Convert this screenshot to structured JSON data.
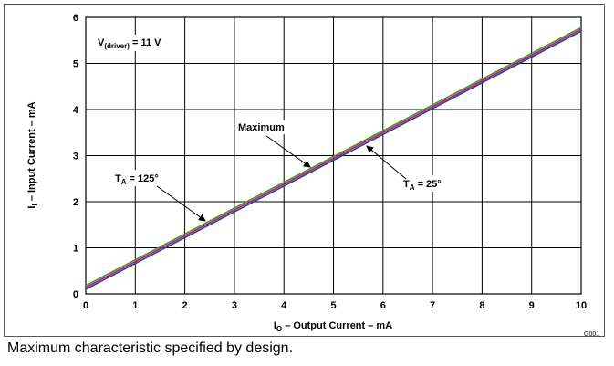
{
  "chart_data": {
    "type": "line",
    "xlabel": {
      "main": "I",
      "sub": "O",
      "rest": " – Output Current – mA"
    },
    "ylabel": {
      "main": "I",
      "sub": "I",
      "rest": " – Input Current – mA"
    },
    "xlim": [
      0,
      10
    ],
    "ylim": [
      0,
      6
    ],
    "x_ticks": [
      "0",
      "1",
      "2",
      "3",
      "4",
      "5",
      "6",
      "7",
      "8",
      "9",
      "10"
    ],
    "y_ticks": [
      "0",
      "1",
      "2",
      "3",
      "4",
      "5",
      "6"
    ],
    "grid": true,
    "series": [
      {
        "name": "Maximum",
        "color": "#2e9e46",
        "x": [
          0,
          10
        ],
        "y": [
          0.18,
          5.78
        ]
      },
      {
        "name": "T_A = 125°",
        "color": "#cc2222",
        "x": [
          0,
          10
        ],
        "y": [
          0.14,
          5.74
        ]
      },
      {
        "name": "T_A = 25°",
        "color": "#3333cc",
        "x": [
          0,
          10
        ],
        "y": [
          0.1,
          5.7
        ]
      }
    ],
    "annotations": {
      "driver": {
        "main": "V",
        "sub": "(driver)",
        "rest": " = 11 V"
      },
      "maximum": "Maximum",
      "ta125": {
        "main": "T",
        "sub": "A",
        "rest": " = 125°"
      },
      "ta25": {
        "main": "T",
        "sub": "A",
        "rest": " = 25°"
      }
    },
    "figure_code": "G001"
  },
  "caption": "Maximum characteristic specified by design."
}
